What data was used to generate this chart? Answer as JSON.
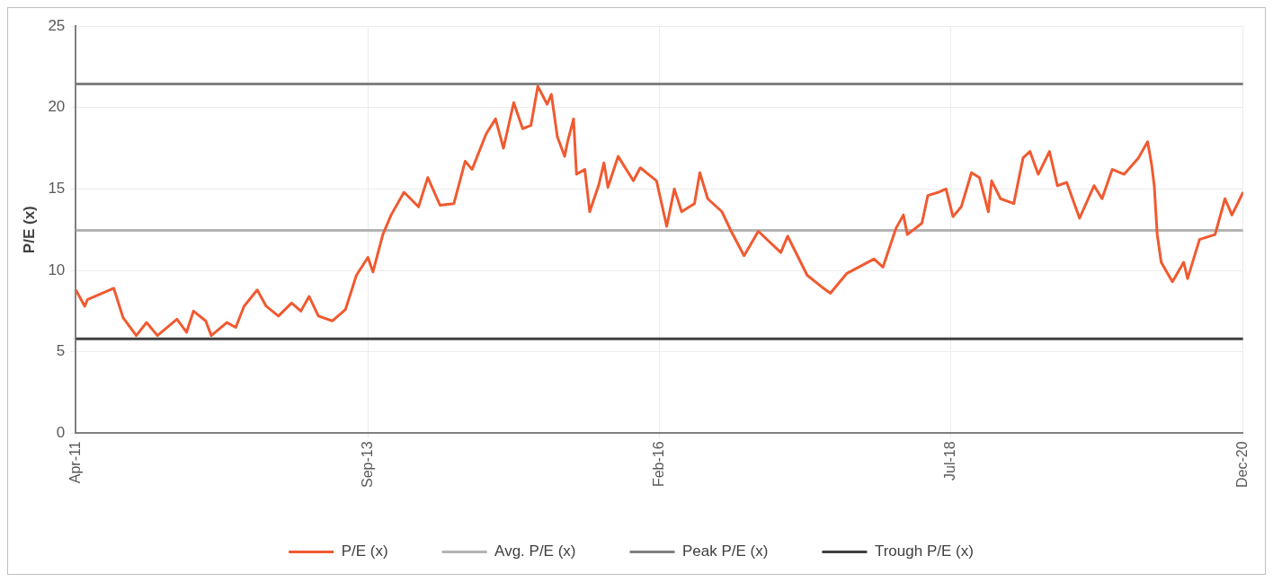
{
  "chart_data": {
    "type": "line",
    "ylabel": "P/E (x)",
    "xlim": [
      "2011-04-01",
      "2020-12-01"
    ],
    "xticks": [
      {
        "value": "2011-04-01",
        "label": "Apr-11"
      },
      {
        "value": "2013-09-01",
        "label": "Sep-13"
      },
      {
        "value": "2016-02-01",
        "label": "Feb-16"
      },
      {
        "value": "2018-07-01",
        "label": "Jul-18"
      },
      {
        "value": "2020-12-01",
        "label": "Dec-20"
      }
    ],
    "ylim": [
      0,
      25
    ],
    "yticks": [
      0,
      5,
      10,
      15,
      20,
      25
    ],
    "grid": true,
    "legend": "bottom",
    "marker": "none",
    "line_style": "solid",
    "series": [
      {
        "name": "P/E (x)",
        "color": "#f05a30",
        "x": [
          "2011-04-01",
          "2011-04-28",
          "2011-05-06",
          "2011-07-25",
          "2011-08-22",
          "2011-10-01",
          "2011-11-01",
          "2011-12-04",
          "2012-02-01",
          "2012-03-01",
          "2012-03-22",
          "2012-04-28",
          "2012-05-15",
          "2012-07-01",
          "2012-07-28",
          "2012-08-22",
          "2012-10-01",
          "2012-10-28",
          "2012-12-04",
          "2013-01-13",
          "2013-02-10",
          "2013-03-07",
          "2013-04-04",
          "2013-05-16",
          "2013-06-25",
          "2013-07-28",
          "2013-09-01",
          "2013-09-16",
          "2013-10-16",
          "2013-11-10",
          "2013-12-19",
          "2014-02-01",
          "2014-03-01",
          "2014-04-07",
          "2014-05-19",
          "2014-06-22",
          "2014-07-13",
          "2014-08-25",
          "2014-09-22",
          "2014-10-16",
          "2014-11-16",
          "2014-12-13",
          "2015-01-07",
          "2015-01-28",
          "2015-02-25",
          "2015-03-10",
          "2015-03-28",
          "2015-04-19",
          "2015-04-28",
          "2015-05-16",
          "2015-05-25",
          "2015-06-19",
          "2015-07-04",
          "2015-08-01",
          "2015-08-16",
          "2015-08-28",
          "2015-09-28",
          "2015-11-13",
          "2015-12-04",
          "2016-01-22",
          "2016-02-22",
          "2016-03-16",
          "2016-04-07",
          "2016-05-16",
          "2016-06-01",
          "2016-06-25",
          "2016-08-07",
          "2016-09-04",
          "2016-10-13",
          "2016-11-25",
          "2017-02-01",
          "2017-02-22",
          "2017-04-22",
          "2017-06-04",
          "2017-07-01",
          "2017-08-19",
          "2017-11-10",
          "2017-12-07",
          "2018-01-16",
          "2018-02-07",
          "2018-02-19",
          "2018-04-04",
          "2018-04-22",
          "2018-05-25",
          "2018-06-16",
          "2018-07-07",
          "2018-08-01",
          "2018-09-01",
          "2018-09-25",
          "2018-10-22",
          "2018-11-01",
          "2018-11-28",
          "2019-01-07",
          "2019-02-04",
          "2019-02-25",
          "2019-03-22",
          "2019-04-25",
          "2019-05-19",
          "2019-06-16",
          "2019-07-25",
          "2019-09-07",
          "2019-10-01",
          "2019-11-01",
          "2019-12-07",
          "2020-01-19",
          "2020-02-16",
          "2020-02-28",
          "2020-03-07",
          "2020-03-16",
          "2020-03-28",
          "2020-05-01",
          "2020-06-04",
          "2020-06-16",
          "2020-07-22",
          "2020-09-07",
          "2020-10-07",
          "2020-10-28",
          "2020-12-01"
        ],
        "values": [
          8.8,
          7.8,
          8.2,
          8.9,
          7.1,
          6.0,
          6.8,
          6.0,
          7.0,
          6.2,
          7.5,
          6.9,
          6.0,
          6.8,
          6.5,
          7.8,
          8.8,
          7.8,
          7.2,
          8.0,
          7.5,
          8.4,
          7.2,
          6.9,
          7.6,
          9.7,
          10.8,
          9.9,
          12.2,
          13.4,
          14.8,
          13.9,
          15.7,
          14.0,
          14.1,
          16.7,
          16.2,
          18.4,
          19.3,
          17.5,
          20.3,
          18.7,
          18.9,
          21.3,
          20.2,
          20.8,
          18.2,
          17.0,
          17.9,
          19.3,
          15.9,
          16.2,
          13.6,
          15.3,
          16.6,
          15.1,
          17.0,
          15.5,
          16.3,
          15.5,
          12.7,
          15.0,
          13.6,
          14.1,
          16.0,
          14.4,
          13.6,
          12.4,
          10.9,
          12.4,
          11.1,
          12.1,
          9.7,
          9.0,
          8.6,
          9.8,
          10.7,
          10.2,
          12.6,
          13.4,
          12.2,
          12.9,
          14.6,
          14.8,
          15.0,
          13.3,
          13.9,
          16.0,
          15.7,
          13.6,
          15.5,
          14.4,
          14.1,
          16.9,
          17.3,
          15.9,
          17.3,
          15.2,
          15.4,
          13.2,
          15.2,
          14.4,
          16.2,
          15.9,
          16.9,
          17.9,
          16.5,
          15.2,
          12.2,
          10.5,
          9.3,
          10.5,
          9.5,
          11.9,
          12.2,
          14.4,
          13.4,
          14.8
        ]
      },
      {
        "name": "Avg. P/E (x)",
        "color": "#b4b4b4",
        "x": [
          "2011-04-01",
          "2020-12-01"
        ],
        "values": [
          12.45,
          12.45
        ]
      },
      {
        "name": "Peak P/E (x)",
        "color": "#808080",
        "x": [
          "2011-04-01",
          "2020-12-01"
        ],
        "values": [
          21.45,
          21.45
        ]
      },
      {
        "name": "Trough P/E (x)",
        "color": "#404040",
        "x": [
          "2011-04-01",
          "2020-12-01"
        ],
        "values": [
          5.8,
          5.8
        ]
      }
    ]
  }
}
